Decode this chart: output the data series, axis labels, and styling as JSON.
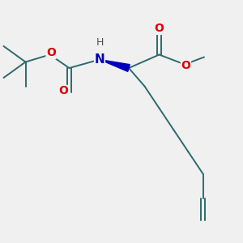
{
  "background_color": "#f0f0f0",
  "bond_color": "#2d6b6b",
  "bond_width": 1.4,
  "wedge_color": "#0000bb",
  "atom_colors": {
    "O": "#dd0000",
    "N": "#0000bb",
    "H": "#445544"
  },
  "figure_size": [
    3.0,
    3.0
  ],
  "dpi": 100,
  "xlim": [
    0,
    10
  ],
  "ylim": [
    0,
    10
  ]
}
